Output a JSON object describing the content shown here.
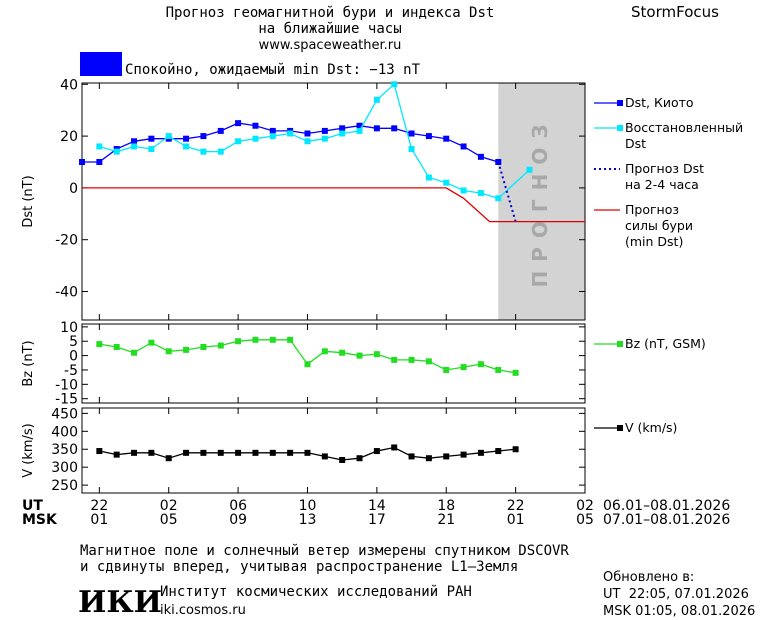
{
  "header": {
    "title_line1": "Прогноз геомагнитной бури и индекса Dst",
    "title_line2": "на ближайшие часы",
    "url": "www.spaceweather.ru",
    "brand": "StormFocus",
    "status": "Спокойно, ожидаемый min Dst: −13 nT"
  },
  "chart_data": [
    {
      "type": "line",
      "ylabel": "Dst (nT)",
      "ylim": [
        -51,
        40.5
      ],
      "yticks": [
        40,
        20,
        0,
        -20,
        -40
      ],
      "forecast_start": 23,
      "forecast_label": "ПРОГНОЗ",
      "series": [
        {
          "name": "Dst, Киото",
          "color": "#0000ff",
          "marker": "square",
          "x": [
            -1,
            0,
            1,
            2,
            3,
            4,
            5,
            6,
            7,
            8,
            9,
            10,
            11,
            12,
            13,
            14,
            15,
            16,
            17,
            18,
            19,
            20,
            21,
            22,
            23
          ],
          "values": [
            10,
            10,
            15,
            18,
            19,
            19,
            19,
            20,
            22,
            25,
            24,
            22,
            22,
            21,
            22,
            23,
            24,
            23,
            23,
            21,
            20,
            19,
            16,
            12,
            10
          ]
        },
        {
          "name": "Восстановленный\nDst",
          "color": "#00e8ff",
          "marker": "square",
          "x": [
            0,
            1,
            2,
            3,
            4,
            5,
            6,
            7,
            8,
            9,
            10,
            11,
            12,
            13,
            14,
            15,
            16,
            17,
            18,
            19,
            20,
            21,
            22,
            23,
            24.8
          ],
          "values": [
            16,
            14,
            16,
            15,
            20,
            16,
            14,
            14,
            18,
            19,
            20,
            21,
            18,
            19,
            21,
            22,
            34,
            40,
            15,
            4,
            2,
            -1,
            -2,
            -4,
            7
          ]
        },
        {
          "name": "Прогноз Dst\nна 2-4 часа",
          "color": "#0000cc",
          "marker": "none",
          "dash": "dotted",
          "x": [
            23,
            24
          ],
          "values": [
            10,
            -13
          ]
        },
        {
          "name": "Прогноз\nсилы бури\n(min Dst)",
          "color": "#e00000",
          "marker": "none",
          "x": [
            -1,
            20,
            21,
            22.5,
            28
          ],
          "values": [
            0,
            0,
            -4,
            -13,
            -13
          ]
        }
      ]
    },
    {
      "type": "line",
      "ylabel": "Bz (nT)",
      "ylim": [
        -16.5,
        11
      ],
      "yticks": [
        10,
        5,
        0,
        -5,
        -10,
        -15
      ],
      "series": [
        {
          "name": "Bz (nT, GSM)",
          "color": "#22dd22",
          "marker": "square",
          "x": [
            0,
            1,
            2,
            3,
            4,
            5,
            6,
            7,
            8,
            9,
            10,
            11,
            12,
            13,
            14,
            15,
            16,
            17,
            18,
            19,
            20,
            21,
            22,
            23,
            24
          ],
          "values": [
            4,
            3,
            1,
            4.5,
            1.5,
            2,
            3,
            3.5,
            5,
            5.5,
            5.5,
            5.5,
            -3,
            1.5,
            1,
            0,
            0.5,
            -1.5,
            -1.5,
            -2,
            -5,
            -4,
            -3,
            -5,
            -6
          ]
        }
      ]
    },
    {
      "type": "line",
      "ylabel": "V (km/s)",
      "ylim": [
        228,
        465
      ],
      "yticks": [
        450,
        400,
        350,
        300,
        250
      ],
      "xlim": [
        -1,
        28
      ],
      "xticks": [
        {
          "value": 0,
          "label": "22"
        },
        {
          "value": 4,
          "label": "02"
        },
        {
          "value": 8,
          "label": "06"
        },
        {
          "value": 12,
          "label": "10"
        },
        {
          "value": 16,
          "label": "14"
        },
        {
          "value": 20,
          "label": "18"
        },
        {
          "value": 24,
          "label": "22"
        },
        {
          "value": 28,
          "label": "02"
        }
      ],
      "xticks_msk": [
        "01",
        "05",
        "09",
        "13",
        "17",
        "21",
        "01",
        "05"
      ],
      "ut_title": "UT",
      "msk_title": "MSK",
      "ut_range": "06.01–08.01.2026",
      "msk_range": "07.01–08.01.2026",
      "series": [
        {
          "name": "V (km/s)",
          "color": "#000000",
          "marker": "square",
          "x": [
            0,
            1,
            2,
            3,
            4,
            5,
            6,
            7,
            8,
            9,
            10,
            11,
            12,
            13,
            14,
            15,
            16,
            17,
            18,
            19,
            20,
            21,
            22,
            23,
            24
          ],
          "values": [
            345,
            335,
            340,
            340,
            325,
            340,
            340,
            340,
            340,
            340,
            340,
            340,
            340,
            330,
            320,
            325,
            345,
            355,
            330,
            325,
            330,
            335,
            340,
            345,
            350
          ]
        }
      ]
    }
  ],
  "footer": {
    "note_line1": "Магнитное поле и солнечный ветер измерены спутником DSCOVR",
    "note_line2": "и сдвинуты вперед, учитывая распространение L1–Земля",
    "updated": "Обновлено в:",
    "updated_ut": "UT  22:05, 07.01.2026",
    "updated_msk": "MSK 01:05, 08.01.2026",
    "logo": "ИКИ",
    "institute": "Институт космических исследований РАН",
    "site": "iki.cosmos.ru"
  }
}
